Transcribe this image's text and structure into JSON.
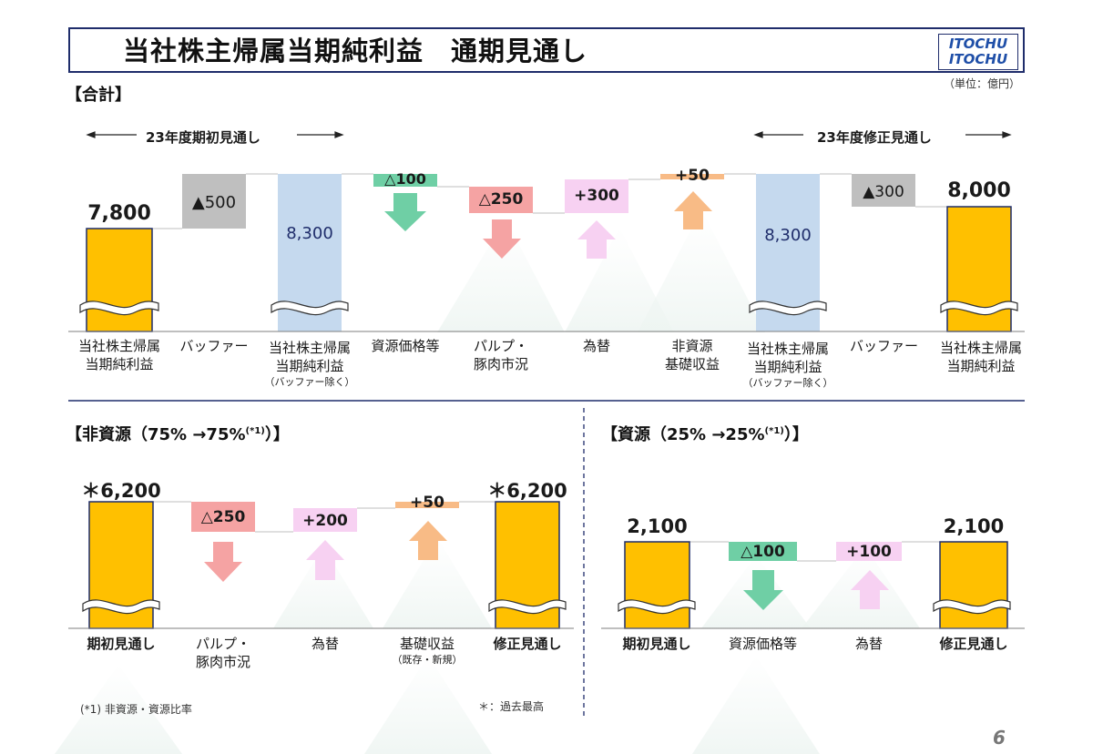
{
  "header": {
    "title": "当社株主帰属当期純利益　通期見通し",
    "logo_text": "ITOCHU",
    "unit": "（単位：億円）",
    "page_number": "6"
  },
  "colors": {
    "gold": "#FFC000",
    "gray": "#BFBFBF",
    "blue_bar": "#C5D9EE",
    "green": "#6FCFA5",
    "red": "#F5A3A3",
    "pink": "#F7D1F2",
    "orange": "#F8BB86",
    "navy": "#1F2D6B"
  },
  "top": {
    "section_label": "【合計】",
    "period_left": "23年度期初見通し",
    "period_right": "23年度修正見通し",
    "categories": [
      {
        "line1": "当社株主帰属",
        "line2": "当期純利益",
        "sub": ""
      },
      {
        "line1": "バッファー",
        "line2": "",
        "sub": ""
      },
      {
        "line1": "当社株主帰属",
        "line2": "当期純利益",
        "sub": "（バッファー除く）"
      },
      {
        "line1": "資源価格等",
        "line2": "",
        "sub": ""
      },
      {
        "line1": "パルプ・",
        "line2": "豚肉市況",
        "sub": ""
      },
      {
        "line1": "為替",
        "line2": "",
        "sub": ""
      },
      {
        "line1": "非資源",
        "line2": "基礎収益",
        "sub": ""
      },
      {
        "line1": "当社株主帰属",
        "line2": "当期純利益",
        "sub": "（バッファー除く）"
      },
      {
        "line1": "バッファー",
        "line2": "",
        "sub": ""
      },
      {
        "line1": "当社株主帰属",
        "line2": "当期純利益",
        "sub": ""
      }
    ],
    "values": {
      "start": "7,800",
      "buffer1": "▲500",
      "excl1": "8,300",
      "resource": "△100",
      "pulp": "△250",
      "fx": "+300",
      "nonres": "+50",
      "excl2": "8,300",
      "buffer2": "▲300",
      "end": "8,000"
    }
  },
  "bottom_left": {
    "section_label": "【非資源（75% →75%",
    "section_sup": "(*1)",
    "section_close": "）】",
    "categories": [
      {
        "line1": "期初見通し",
        "line2": "",
        "sub": "",
        "bold": true
      },
      {
        "line1": "パルプ・",
        "line2": "豚肉市況",
        "sub": "",
        "bold": false
      },
      {
        "line1": "為替",
        "line2": "",
        "sub": "",
        "bold": false
      },
      {
        "line1": "基礎収益",
        "line2": "",
        "sub": "（既存・新規）",
        "bold": false
      },
      {
        "line1": "修正見通し",
        "line2": "",
        "sub": "",
        "bold": true
      }
    ],
    "values": {
      "start": "＊6,200",
      "pulp": "△250",
      "fx": "+200",
      "base": "+50",
      "end": "＊6,200"
    },
    "footnote": "(*1) 非資源・資源比率",
    "star_note": "＊：過去最高"
  },
  "bottom_right": {
    "section_label": "【資源（25% →25%",
    "section_sup": "(*1)",
    "section_close": "）】",
    "categories": [
      {
        "line1": "期初見通し",
        "bold": true
      },
      {
        "line1": "資源価格等",
        "bold": false
      },
      {
        "line1": "為替",
        "bold": false
      },
      {
        "line1": "修正見通し",
        "bold": true
      }
    ],
    "values": {
      "start": "2,100",
      "resource": "△100",
      "fx": "+100",
      "end": "2,100"
    }
  },
  "chart_data": [
    {
      "type": "waterfall",
      "title": "【合計】",
      "categories": [
        "当社株主帰属当期純利益",
        "バッファー",
        "当社株主帰属当期純利益（バッファー除く）",
        "資源価格等",
        "パルプ・豚肉市況",
        "為替",
        "非資源基礎収益",
        "当社株主帰属当期純利益（バッファー除く）",
        "バッファー",
        "当社株主帰属当期純利益"
      ],
      "values": [
        7800,
        -500,
        8300,
        -100,
        -250,
        300,
        50,
        8300,
        -300,
        8000
      ]
    },
    {
      "type": "waterfall",
      "title": "【非資源（75% →75%(*1)）】",
      "categories": [
        "期初見通し",
        "パルプ・豚肉市況",
        "為替",
        "基礎収益（既存・新規）",
        "修正見通し"
      ],
      "values": [
        6200,
        -250,
        200,
        50,
        6200
      ]
    },
    {
      "type": "waterfall",
      "title": "【資源（25% →25%(*1)）】",
      "categories": [
        "期初見通し",
        "資源価格等",
        "為替",
        "修正見通し"
      ],
      "values": [
        2100,
        -100,
        100,
        2100
      ]
    }
  ]
}
